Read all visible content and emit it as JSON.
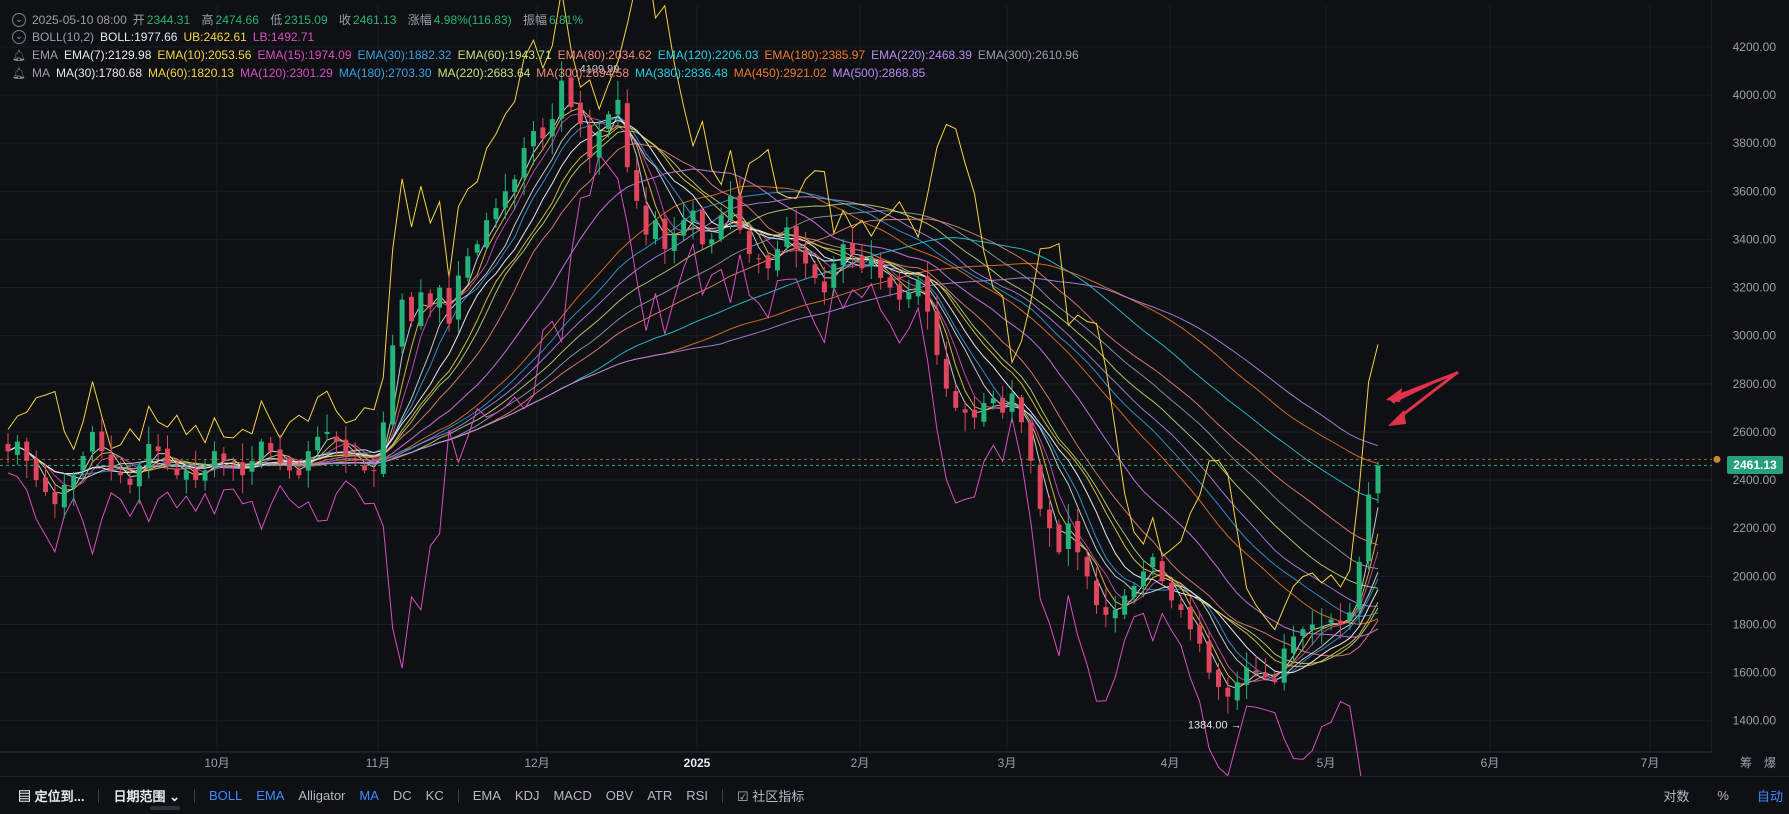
{
  "ohlc": {
    "datetime": "2025-05-10 08:00",
    "open_label": "开",
    "open": "2344.31",
    "high_label": "高",
    "high": "2474.66",
    "low_label": "低",
    "low": "2315.09",
    "close_label": "收",
    "close": "2461.13",
    "change_label": "涨幅",
    "change": "4.98%(116.83)",
    "amplitude_label": "振幅",
    "amplitude": "6.81%"
  },
  "boll": {
    "name": "BOLL(10,2)",
    "items": [
      {
        "text": "BOLL:1977.66",
        "color": "#e6e9ee"
      },
      {
        "text": "UB:2462.61",
        "color": "#f5d442"
      },
      {
        "text": "LB:1492.71",
        "color": "#d94fc0"
      }
    ]
  },
  "ema": {
    "name": "EMA",
    "items": [
      {
        "text": "EMA(7):2129.98",
        "color": "#e6e9ee"
      },
      {
        "text": "EMA(10):2053.56",
        "color": "#f5d442"
      },
      {
        "text": "EMA(15):1974.09",
        "color": "#d94fc0"
      },
      {
        "text": "EMA(30):1882.32",
        "color": "#3aa0e0"
      },
      {
        "text": "EMA(60):1943.71",
        "color": "#c6e07a"
      },
      {
        "text": "EMA(80):2034.62",
        "color": "#f08a7a"
      },
      {
        "text": "EMA(120):2206.03",
        "color": "#29d0e0"
      },
      {
        "text": "EMA(180):2385.97",
        "color": "#f07a2a"
      },
      {
        "text": "EMA(220):2468.39",
        "color": "#b58cf0"
      },
      {
        "text": "EMA(300):2610.96",
        "color": "#9aa0aa"
      }
    ]
  },
  "ma": {
    "name": "MA",
    "items": [
      {
        "text": "MA(30):1780.68",
        "color": "#e6e9ee"
      },
      {
        "text": "MA(60):1820.13",
        "color": "#f5d442"
      },
      {
        "text": "MA(120):2301.29",
        "color": "#d94fc0"
      },
      {
        "text": "MA(180):2703.30",
        "color": "#3aa0e0"
      },
      {
        "text": "MA(220):2683.64",
        "color": "#c6e07a"
      },
      {
        "text": "MA(300):2694.58",
        "color": "#f08a7a"
      },
      {
        "text": "MA(380):2836.48",
        "color": "#29d0e0"
      },
      {
        "text": "MA(450):2921.02",
        "color": "#f07a2a"
      },
      {
        "text": "MA(500):2868.85",
        "color": "#b58cf0"
      }
    ]
  },
  "current_price_tag": "2461.13",
  "toolbar": {
    "locate": "定位到...",
    "date_range": "日期范围",
    "main_indicators": [
      "BOLL",
      "EMA",
      "Alligator",
      "MA",
      "DC",
      "KC"
    ],
    "active_main": [
      "BOLL",
      "EMA",
      "MA"
    ],
    "sub_indicators": [
      "EMA",
      "KDJ",
      "MACD",
      "OBV",
      "ATR",
      "RSI"
    ],
    "community": "社区指标",
    "log": "对数",
    "percent": "%",
    "auto": "自动"
  },
  "chart_data": {
    "type": "candlestick",
    "y_axis_ticks": [
      "4200.00",
      "4000.00",
      "3800.00",
      "3600.00",
      "3400.00",
      "3200.00",
      "3000.00",
      "2800.00",
      "2600.00",
      "2400.00",
      "2200.00",
      "2000.00",
      "1800.00",
      "1600.00",
      "1400.00"
    ],
    "ylim": [
      1270,
      4370
    ],
    "x_axis_labels": [
      "10月",
      "11月",
      "12月",
      "2025",
      "2月",
      "3月",
      "4月",
      "5月",
      "6月",
      "7月"
    ],
    "x_axis_extra": [
      "筹",
      "爆"
    ],
    "annotations": [
      {
        "text": "4109.99",
        "kind": "max"
      },
      {
        "text": "1384.00 →",
        "kind": "min"
      }
    ],
    "close_path": [
      [
        2520,
        2560,
        2480,
        2400,
        2350,
        2300,
        2380,
        2420,
        2500,
        2600,
        2520,
        2440,
        2420,
        2380,
        2460,
        2550,
        2520,
        2460,
        2420,
        2440,
        2400,
        2440,
        2520,
        2480,
        2460,
        2420,
        2480,
        2560,
        2520,
        2470,
        2440,
        2420,
        2520,
        2580,
        2600,
        2560,
        2500,
        2480,
        2440
      ],
      [
        2440,
        2640,
        2960,
        3150,
        3060,
        3180,
        3120,
        3200,
        3050,
        3250,
        3330,
        3380,
        3480,
        3530,
        3600,
        3650,
        3780,
        3850,
        3820,
        3900,
        4060,
        3950,
        3880,
        3740,
        3850,
        3920,
        3980,
        3700,
        3560,
        3420,
        3480,
        3360,
        3420,
        3480,
        3520,
        3380,
        3400,
        3500,
        3580,
        3440,
        3340,
        3320,
        3280,
        3360,
        3450,
        3360,
        3300,
        3240,
        3180,
        3300,
        3380,
        3340,
        3280,
        3320,
        3240,
        3200,
        3150
      ],
      [
        3180,
        3230,
        3100,
        2920,
        2780,
        2700,
        2680,
        2660,
        2720,
        2740,
        2680,
        2760,
        2640,
        2480,
        2280,
        2200,
        2100,
        2220,
        2100,
        2000,
        1880,
        1840,
        1860,
        1920,
        1960,
        2020,
        2080,
        1980,
        1900,
        1860,
        1780,
        1720,
        1600,
        1540,
        1500,
        1560,
        1620,
        1600,
        1580,
        1560,
        1700,
        1750,
        1780,
        1800,
        1790,
        1820,
        1800,
        1850,
        2060,
        2340,
        2461
      ]
    ]
  }
}
